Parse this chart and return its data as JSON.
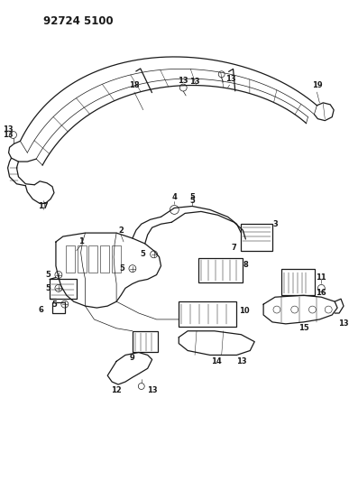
{
  "title": "92724 5100",
  "bg_color": "#ffffff",
  "line_color": "#1a1a1a",
  "fig_width": 3.87,
  "fig_height": 5.33,
  "dpi": 100,
  "aspect": "equal"
}
